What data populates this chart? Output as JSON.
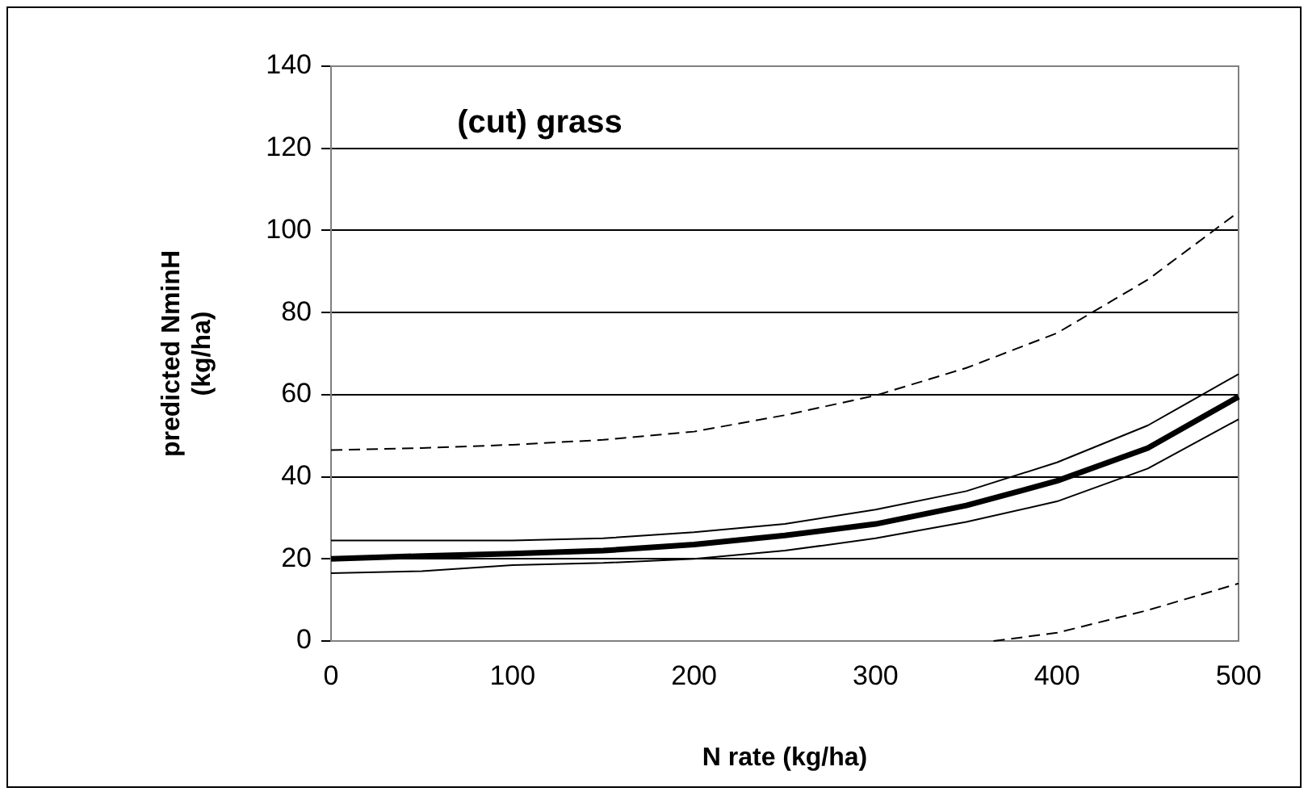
{
  "chart_data": {
    "type": "line",
    "xlabel": "N rate (kg/ha)",
    "ylabel": "predicted NminH\n(kg/ha)",
    "annotations": [
      "(cut) grass"
    ],
    "x": [
      0,
      50,
      100,
      150,
      200,
      250,
      300,
      350,
      400,
      450,
      500
    ],
    "series": [
      {
        "color": "#000000",
        "line_style": "dashed",
        "values": [
          46.5,
          47,
          47.8,
          49,
          51,
          55,
          59.8,
          66.5,
          75,
          88,
          104.5
        ]
      },
      {
        "color": "#000000",
        "values": [
          24.5,
          24.5,
          24.5,
          25,
          26.5,
          28.5,
          32,
          36.5,
          43.5,
          52.5,
          65
        ]
      },
      {
        "color": "#000000",
        "values": [
          20,
          20.7,
          21.3,
          22,
          23.5,
          25.7,
          28.5,
          33,
          39,
          47,
          59.5
        ]
      },
      {
        "color": "#000000",
        "values": [
          16.5,
          17,
          18.5,
          19,
          20,
          22,
          25,
          29,
          34,
          42,
          54
        ]
      },
      {
        "color": "#000000",
        "line_style": "dashed",
        "x": [
          365,
          400,
          450,
          500
        ],
        "values": [
          0,
          2,
          7.5,
          14
        ]
      }
    ],
    "xlim": [
      0,
      500
    ],
    "xticks": [
      0,
      100,
      200,
      300,
      400,
      500
    ],
    "ylim": [
      0,
      140
    ],
    "yticks": [
      0,
      20,
      40,
      60,
      80,
      100,
      120,
      140
    ],
    "grid": "y",
    "legend": false,
    "marker": "none"
  }
}
